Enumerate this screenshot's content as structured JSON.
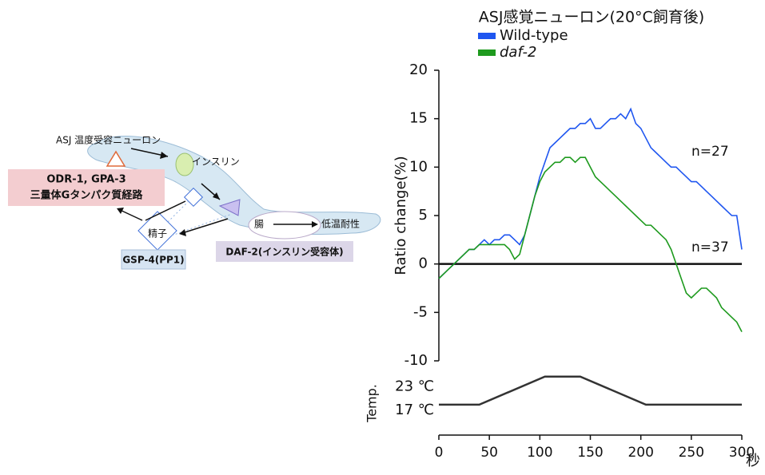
{
  "diagram": {
    "neuron_label": "ASJ 温度受容ニューロン",
    "insulin": "インスリン",
    "pathway_title": "ODR-1, GPA-3",
    "pathway_name": "三量体Gタンパク質経路",
    "intestine": "腸",
    "cold_tolerance": "低温耐性",
    "sperm": "精子",
    "gsp4": "GSP-4(PP1)",
    "daf2": "DAF-2(インスリン受容体)"
  },
  "chart_data": [
    {
      "type": "line",
      "title": "ASJ感覚ニューロン(20°C飼育後)",
      "y_label": "Ratio change(%)",
      "annotations": [
        "n=27",
        "n=37"
      ],
      "xlim": [
        0,
        300
      ],
      "ylim": [
        -10,
        20
      ],
      "yticks": [
        -10,
        -5,
        0,
        5,
        10,
        15,
        20
      ],
      "reference_line": 0,
      "x": [
        0,
        5,
        10,
        15,
        20,
        25,
        30,
        35,
        40,
        45,
        50,
        55,
        60,
        65,
        70,
        75,
        80,
        85,
        90,
        95,
        100,
        105,
        110,
        115,
        120,
        125,
        130,
        135,
        140,
        145,
        150,
        155,
        160,
        165,
        170,
        175,
        180,
        185,
        190,
        195,
        200,
        205,
        210,
        215,
        220,
        225,
        230,
        235,
        240,
        245,
        250,
        255,
        260,
        265,
        270,
        275,
        280,
        285,
        290,
        295,
        300
      ],
      "series": [
        {
          "name": "Wild-type",
          "color": "#1f56f0",
          "values": [
            -1.5,
            -1,
            -0.5,
            0,
            0.5,
            1,
            1.5,
            1.5,
            2,
            2.5,
            2,
            2.5,
            2.5,
            3,
            3,
            2.5,
            2,
            3,
            5,
            7,
            9,
            10.5,
            12,
            12.5,
            13,
            13.5,
            14,
            14,
            14.5,
            14.5,
            15,
            14,
            14,
            14.5,
            15,
            15,
            15.5,
            15,
            16,
            14.5,
            14,
            13,
            12,
            11.5,
            11,
            10.5,
            10,
            10,
            9.5,
            9,
            8.5,
            8.5,
            8,
            7.5,
            7,
            6.5,
            6,
            5.5,
            5,
            5,
            1.5
          ]
        },
        {
          "name": "daf-2",
          "color": "#1e9a1e",
          "values": [
            -1.5,
            -1,
            -0.5,
            0,
            0.5,
            1,
            1.5,
            1.5,
            2,
            2,
            2,
            2,
            2,
            2,
            1.5,
            0.5,
            1,
            3,
            5,
            7,
            8.5,
            9.5,
            10,
            10.5,
            10.5,
            11,
            11,
            10.5,
            11,
            11,
            10,
            9,
            8.5,
            8,
            7.5,
            7,
            6.5,
            6,
            5.5,
            5,
            4.5,
            4,
            4,
            3.5,
            3,
            2.5,
            1.5,
            0,
            -1.5,
            -3,
            -3.5,
            -3,
            -2.5,
            -2.5,
            -3,
            -3.5,
            -4.5,
            -5,
            -5.5,
            -6,
            -7
          ]
        }
      ]
    },
    {
      "type": "line",
      "y_label": "Temp.",
      "x_label": "秒",
      "color": "#333333",
      "xlim": [
        0,
        300
      ],
      "xticks": [
        0,
        50,
        100,
        150,
        200,
        250,
        300
      ],
      "ylim": [
        10.5,
        25
      ],
      "yticks": [
        {
          "value": 17,
          "label": "17 ℃"
        },
        {
          "value": 23,
          "label": "23 ℃"
        }
      ],
      "x": [
        0,
        40,
        105,
        140,
        205,
        300
      ],
      "values": [
        17,
        17,
        23,
        23,
        17,
        17
      ]
    }
  ]
}
